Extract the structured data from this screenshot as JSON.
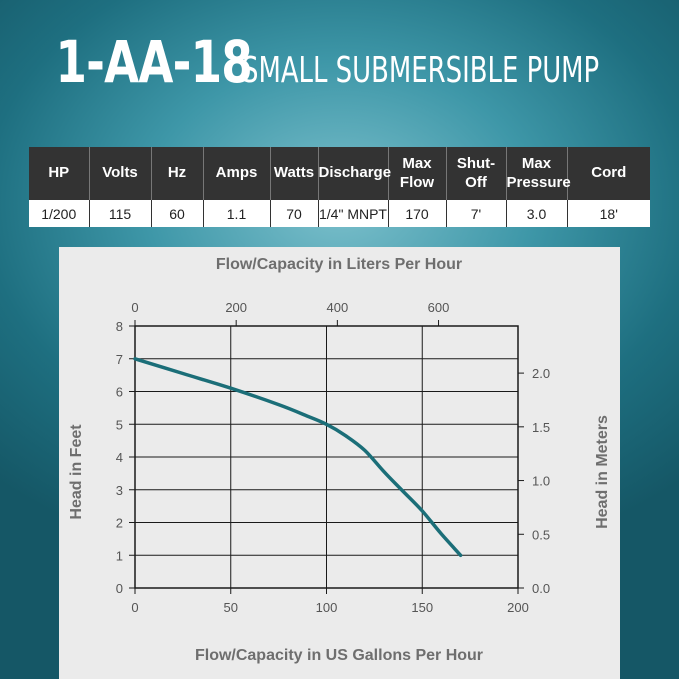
{
  "header": {
    "model": "1-AA-18",
    "subtitle": "SMALL SUBMERSIBLE PUMP"
  },
  "specs": {
    "headers": [
      [
        "HP"
      ],
      [
        "Volts"
      ],
      [
        "Hz"
      ],
      [
        "Amps"
      ],
      [
        "Watts"
      ],
      [
        "Discharge"
      ],
      [
        "Max",
        "Flow"
      ],
      [
        "Shut-Off"
      ],
      [
        "Max",
        "Pressure"
      ],
      [
        "Cord"
      ]
    ],
    "values": [
      "1/200",
      "115",
      "60",
      "1.1",
      "70",
      "1/4\" MNPT",
      "170",
      "7'",
      "3.0",
      "18'"
    ]
  },
  "colors": {
    "curve": "#1b6e78",
    "header_bg": "#333333",
    "card_bg": "#ebebeb"
  },
  "chart_data": {
    "type": "line",
    "top_axis_title": "Flow/Capacity in Liters Per Hour",
    "xlabel": "Flow/Capacity in US Gallons Per Hour",
    "ylabel_left": "Head in Feet",
    "ylabel_right": "Head in Meters",
    "xlim": [
      0,
      200
    ],
    "ylim": [
      0,
      8
    ],
    "x_ticks": [
      0,
      50,
      100,
      150,
      200
    ],
    "y_ticks": [
      0,
      1,
      2,
      3,
      4,
      5,
      6,
      7,
      8
    ],
    "top_ticks": [
      "0",
      "200",
      "400",
      "600"
    ],
    "top_tick_values_lph": [
      0,
      200,
      400,
      600
    ],
    "right_ticks": [
      "0.0",
      "0.5",
      "1.0",
      "1.5",
      "2.0"
    ],
    "right_tick_values_m": [
      0,
      0.5,
      1.0,
      1.5,
      2.0
    ],
    "grid": true,
    "series": [
      {
        "x": [
          0,
          25,
          50,
          75,
          90,
          100,
          110,
          120,
          130,
          140,
          150,
          160,
          170
        ],
        "y": [
          7.0,
          6.55,
          6.1,
          5.6,
          5.25,
          5.0,
          4.65,
          4.2,
          3.55,
          2.95,
          2.35,
          1.65,
          1.0
        ]
      }
    ]
  }
}
